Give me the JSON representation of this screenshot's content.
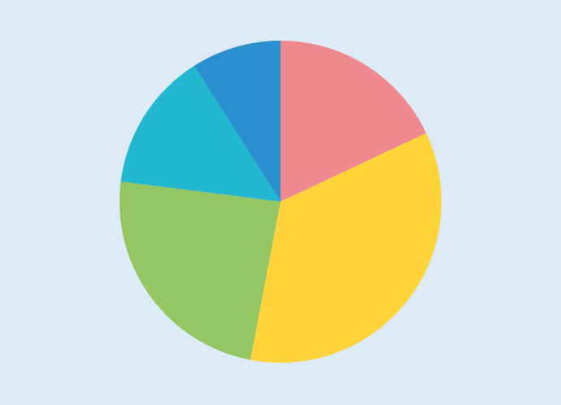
{
  "chart_data": {
    "type": "pie",
    "values": [
      18,
      35,
      24,
      14,
      9
    ],
    "colors": [
      "#f08890",
      "#ffd43b",
      "#94c764",
      "#22b8cf",
      "#2a8fcf"
    ],
    "start_angle": 0,
    "direction": "clockwise"
  }
}
